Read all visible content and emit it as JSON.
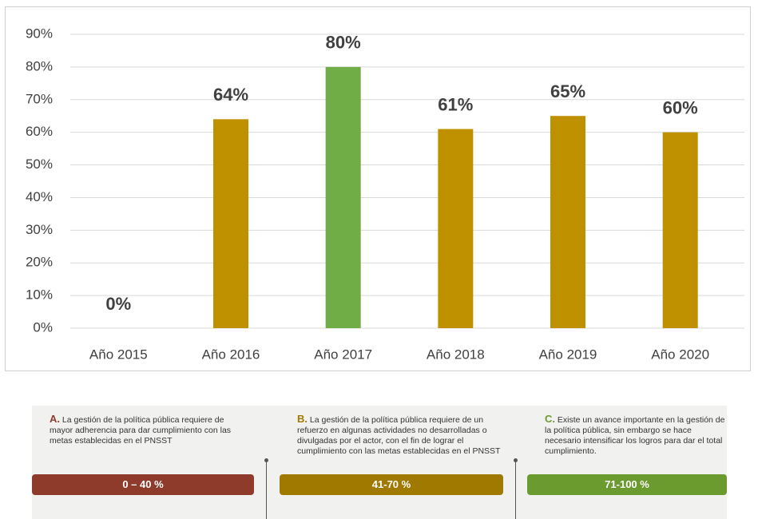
{
  "chart_data": {
    "type": "bar",
    "categories": [
      "Año 2015",
      "Año 2016",
      "Año 2017",
      "Año 2018",
      "Año 2019",
      "Año 2020"
    ],
    "values": [
      0,
      64,
      80,
      61,
      65,
      60
    ],
    "value_labels": [
      "0%",
      "64%",
      "80%",
      "61%",
      "65%",
      "60%"
    ],
    "colors": [
      "#bf9000",
      "#bf9000",
      "#70ad47",
      "#bf9000",
      "#bf9000",
      "#bf9000"
    ],
    "ylim": [
      0,
      90
    ],
    "yticks": [
      {
        "value": 0,
        "label": "0%"
      },
      {
        "value": 10,
        "label": "10%"
      },
      {
        "value": 20,
        "label": "20%"
      },
      {
        "value": 30,
        "label": "30%"
      },
      {
        "value": 40,
        "label": "40%"
      },
      {
        "value": 50,
        "label": "50%"
      },
      {
        "value": 60,
        "label": "60%"
      },
      {
        "value": 70,
        "label": "70%"
      },
      {
        "value": 80,
        "label": "80%"
      },
      {
        "value": 90,
        "label": "90%"
      }
    ],
    "grid": true
  },
  "scale": [
    {
      "letter": "A.",
      "text": "La gestión de la política pública requiere de mayor adherencia para dar cumplimiento con las metas establecidas en el PNSST",
      "range": "0 – 40 %",
      "color": "#8e3b2c"
    },
    {
      "letter": "B.",
      "text": "La gestión de la política pública requiere de un refuerzo en algunas actividades no desarrolladas o divulgadas por el actor, con el fin de lograr el cumplimiento con las metas establecidas en el PNSST",
      "range": "41-70 %",
      "color": "#a07a00"
    },
    {
      "letter": "C.",
      "text": "Existe un avance importante en la gestión de la política pública, sin embargo se hace necesario intensificar los logros para dar el total cumplimiento.",
      "range": "71-100 %",
      "color": "#6b9a2e"
    }
  ]
}
